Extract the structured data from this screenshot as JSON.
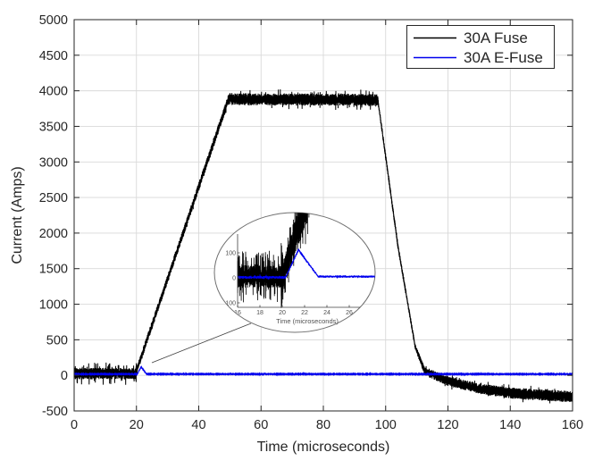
{
  "figure": {
    "background": "#ffffff",
    "axis_color": "#262626",
    "grid_color": "#d9d9d9",
    "accent_blue": "#0000ee"
  },
  "legend": {
    "position": "northeast",
    "entries": [
      {
        "label": "30A Fuse",
        "color": "#000000"
      },
      {
        "label": "30A E-Fuse",
        "color": "#0000ee"
      }
    ]
  },
  "chart_data": {
    "type": "line",
    "title": "",
    "xlabel": "Time (microseconds)",
    "ylabel": "Current (Amps)",
    "xlim": [
      0,
      160
    ],
    "ylim": [
      -500,
      5000
    ],
    "x_ticks": [
      0,
      20,
      40,
      60,
      80,
      100,
      120,
      140,
      160
    ],
    "y_ticks": [
      -500,
      0,
      500,
      1000,
      1500,
      2000,
      2500,
      3000,
      3500,
      4000,
      4500,
      5000
    ],
    "grid": true,
    "legend_position": "northeast",
    "series": [
      {
        "name": "30A Fuse",
        "color": "#000000",
        "summary_points": [
          [
            0,
            30
          ],
          [
            19.9,
            30
          ],
          [
            20,
            60
          ],
          [
            49.5,
            3880
          ],
          [
            97.5,
            3870
          ],
          [
            104,
            1800
          ],
          [
            112.5,
            50
          ],
          [
            120,
            -80
          ],
          [
            130,
            -185
          ],
          [
            140,
            -250
          ],
          [
            160,
            -300
          ]
        ],
        "noisy": true,
        "dt": 0.045,
        "segments": [
          {
            "t0": 0,
            "t1": 19.82,
            "y0": 25,
            "y1": 25,
            "n0": 80,
            "n1": 80,
            "sp": 0.1,
            "spm": 2.0
          },
          {
            "t0": 19.82,
            "t1": 20.0,
            "y0": 25,
            "y1": 60,
            "n0": 300,
            "n1": 130,
            "sp": 0,
            "spm": 1
          },
          {
            "t0": 20.0,
            "t1": 49.5,
            "y0": 60,
            "y1": 3880,
            "n0": 55,
            "n1": 65,
            "sp": 0.05,
            "spm": 1.6
          },
          {
            "t0": 49.5,
            "t1": 97.5,
            "y0": 3885,
            "y1": 3870,
            "n0": 85,
            "n1": 85,
            "sp": 0.07,
            "spm": 1.7
          },
          {
            "t0": 97.5,
            "t1": 104,
            "y0": 3870,
            "y1": 1800,
            "n0": 45,
            "n1": 45,
            "sp": 0,
            "spm": 1
          },
          {
            "t0": 104,
            "t1": 109.5,
            "y0": 1800,
            "y1": 400,
            "n0": 40,
            "n1": 40,
            "sp": 0,
            "spm": 1
          },
          {
            "t0": 109.5,
            "t1": 112.5,
            "y0": 400,
            "y1": 60,
            "n0": 40,
            "n1": 55,
            "sp": 0,
            "spm": 1
          },
          {
            "t0": 112.5,
            "t1": 120,
            "y0": 60,
            "y1": -80,
            "n0": 60,
            "n1": 70,
            "sp": 0.06,
            "spm": 1.5
          },
          {
            "t0": 120,
            "t1": 130,
            "y0": -80,
            "y1": -185,
            "n0": 70,
            "n1": 75,
            "sp": 0.06,
            "spm": 1.5
          },
          {
            "t0": 130,
            "t1": 140,
            "y0": -185,
            "y1": -250,
            "n0": 75,
            "n1": 80,
            "sp": 0.06,
            "spm": 1.5
          },
          {
            "t0": 140,
            "t1": 160,
            "y0": -250,
            "y1": -300,
            "n0": 80,
            "n1": 80,
            "sp": 0.06,
            "spm": 1.5
          }
        ]
      },
      {
        "name": "30A E-Fuse",
        "color": "#0000ee",
        "summary_points": [
          [
            0,
            20
          ],
          [
            20.3,
            20
          ],
          [
            21.5,
            120
          ],
          [
            23.2,
            20
          ],
          [
            160,
            20
          ]
        ],
        "noisy": true,
        "dt": 0.08,
        "segments": [
          {
            "t0": 0,
            "t1": 20.3,
            "y0": 18,
            "y1": 18,
            "n0": 7,
            "n1": 7,
            "sp": 0.05,
            "spm": 1.8
          },
          {
            "t0": 20.3,
            "t1": 21.5,
            "y0": 18,
            "y1": 120,
            "n0": 6,
            "n1": 8,
            "sp": 0,
            "spm": 1
          },
          {
            "t0": 21.5,
            "t1": 23.2,
            "y0": 120,
            "y1": 20,
            "n0": 8,
            "n1": 6,
            "sp": 0,
            "spm": 1
          },
          {
            "t0": 23.2,
            "t1": 160,
            "y0": 18,
            "y1": 18,
            "n0": 7,
            "n1": 7,
            "sp": 0.04,
            "spm": 1.6
          }
        ]
      }
    ],
    "inset": {
      "type": "line",
      "xlabel": "Time (microseconds)",
      "xlim": [
        16,
        28.4
      ],
      "ylim": [
        -160,
        170
      ],
      "x_ticks": [
        16,
        18,
        20,
        22,
        24,
        26
      ],
      "y_ticks": [
        -100,
        0,
        100
      ],
      "series": [
        {
          "name": "30A Fuse",
          "color": "#000000",
          "dt": 0.012,
          "segments": [
            {
              "t0": 16,
              "t1": 19.9,
              "y0": 5,
              "y1": 5,
              "n0": 45,
              "n1": 45,
              "sp": 0.28,
              "spm": 2.3
            },
            {
              "t0": 19.9,
              "t1": 20.05,
              "y0": 5,
              "y1": 5,
              "n0": 135,
              "n1": 135,
              "sp": 0,
              "spm": 1
            },
            {
              "t0": 20.05,
              "t1": 22.4,
              "y0": 10,
              "y1": 330,
              "n0": 60,
              "n1": 90,
              "sp": 0.18,
              "spm": 1.8
            }
          ]
        },
        {
          "name": "30A E-Fuse",
          "color": "#0000ee",
          "dt": 0.02,
          "segments": [
            {
              "t0": 16,
              "t1": 20.3,
              "y0": 2,
              "y1": 2,
              "n0": 6,
              "n1": 6,
              "sp": 0.06,
              "spm": 2
            },
            {
              "t0": 20.3,
              "t1": 21.45,
              "y0": 2,
              "y1": 112,
              "n0": 5,
              "n1": 7,
              "sp": 0,
              "spm": 1
            },
            {
              "t0": 21.45,
              "t1": 23.2,
              "y0": 112,
              "y1": 6,
              "n0": 7,
              "n1": 5,
              "sp": 0,
              "spm": 1
            },
            {
              "t0": 23.2,
              "t1": 28.3,
              "y0": 5,
              "y1": 5,
              "n0": 5,
              "n1": 5,
              "sp": 0.05,
              "spm": 1.6
            }
          ]
        }
      ]
    }
  }
}
